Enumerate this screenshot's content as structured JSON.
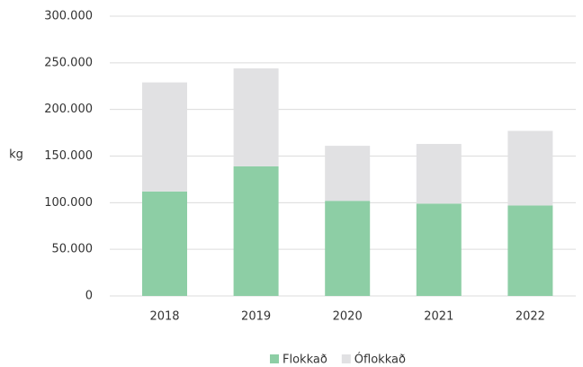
{
  "chart_data": {
    "type": "stacked-bar",
    "y_label": "kg",
    "categories": [
      "2018",
      "2019",
      "2020",
      "2021",
      "2022"
    ],
    "series": [
      {
        "name": "Flokkað",
        "color": "#8dcea5",
        "values": [
          112000,
          139000,
          102000,
          99000,
          97000
        ]
      },
      {
        "name": "Óflokkað",
        "color": "#e1e1e3",
        "values": [
          117000,
          105000,
          59000,
          64000,
          80000
        ]
      }
    ],
    "ylim": [
      0,
      300000
    ],
    "yticks": [
      0,
      {
        "value": 50000,
        "label": "50.000"
      },
      {
        "value": 100000,
        "label": "100.000"
      },
      {
        "value": 150000,
        "label": "150.000"
      },
      {
        "value": 200000,
        "label": "200.000"
      },
      {
        "value": 250000,
        "label": "250.000"
      },
      {
        "value": 300000,
        "label": "300.000"
      }
    ],
    "grid": true,
    "legend": "bottom"
  }
}
